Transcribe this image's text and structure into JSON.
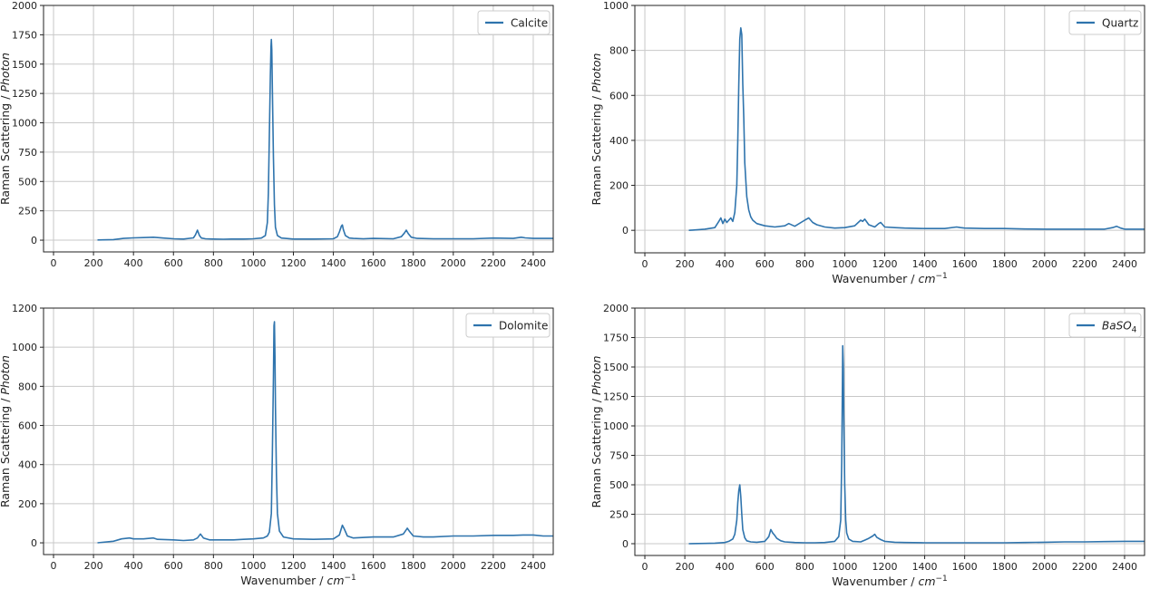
{
  "chart_data": [
    {
      "type": "line",
      "ylabel_main": "Raman Scattering / ",
      "ylabel_italic": "Photon",
      "xlabel": "",
      "xlim": [
        -50,
        2500
      ],
      "ylim": [
        -100,
        2000
      ],
      "xticks": [
        "0",
        "200",
        "400",
        "600",
        "800",
        "1000",
        "1200",
        "1400",
        "1600",
        "1800",
        "2000",
        "2200",
        "2400"
      ],
      "yticks": [
        "0",
        "250",
        "500",
        "750",
        "1000",
        "1250",
        "1500",
        "1750",
        "2000"
      ],
      "grid": true,
      "legend_position": "top-right",
      "series": [
        {
          "name": "Calcite",
          "color": "#2f74ad",
          "x": [
            220,
            300,
            350,
            400,
            450,
            500,
            550,
            600,
            650,
            700,
            710,
            720,
            730,
            740,
            760,
            800,
            850,
            900,
            950,
            1000,
            1040,
            1060,
            1070,
            1075,
            1080,
            1085,
            1088,
            1090,
            1092,
            1095,
            1100,
            1105,
            1110,
            1120,
            1140,
            1200,
            1300,
            1400,
            1420,
            1430,
            1440,
            1445,
            1450,
            1460,
            1480,
            1500,
            1550,
            1600,
            1700,
            1740,
            1755,
            1765,
            1775,
            1790,
            1820,
            1900,
            2000,
            2100,
            2200,
            2300,
            2340,
            2360,
            2400,
            2500
          ],
          "values": [
            2,
            5,
            15,
            20,
            22,
            25,
            18,
            12,
            10,
            20,
            45,
            85,
            40,
            18,
            12,
            10,
            8,
            10,
            10,
            12,
            18,
            40,
            150,
            400,
            900,
            1400,
            1650,
            1710,
            1620,
            1300,
            700,
            300,
            110,
            40,
            18,
            10,
            10,
            12,
            30,
            70,
            120,
            130,
            90,
            40,
            18,
            15,
            12,
            15,
            12,
            30,
            60,
            85,
            55,
            25,
            15,
            12,
            12,
            12,
            18,
            15,
            25,
            20,
            15,
            15
          ]
        }
      ]
    },
    {
      "type": "line",
      "ylabel_main": "Raman Scattering / ",
      "ylabel_italic": "Photon",
      "xlabel": "Wavenumber / cm",
      "xlabel_sup": "−1",
      "xlim": [
        -50,
        2500
      ],
      "ylim": [
        -100,
        1000
      ],
      "xticks": [
        "0",
        "200",
        "400",
        "600",
        "800",
        "1000",
        "1200",
        "1400",
        "1600",
        "1800",
        "2000",
        "2200",
        "2400"
      ],
      "yticks": [
        "0",
        "200",
        "400",
        "600",
        "800",
        "1000"
      ],
      "grid": true,
      "legend_position": "top-right",
      "series": [
        {
          "name": "Quartz",
          "color": "#2f74ad",
          "x": [
            220,
            300,
            350,
            370,
            380,
            390,
            400,
            410,
            420,
            430,
            440,
            450,
            460,
            465,
            470,
            475,
            480,
            485,
            490,
            495,
            500,
            510,
            520,
            530,
            540,
            560,
            600,
            650,
            700,
            720,
            750,
            800,
            820,
            840,
            860,
            900,
            950,
            1000,
            1050,
            1080,
            1090,
            1100,
            1120,
            1150,
            1170,
            1180,
            1200,
            1250,
            1300,
            1400,
            1500,
            1560,
            1580,
            1600,
            1700,
            1800,
            1900,
            2000,
            2100,
            2200,
            2300,
            2340,
            2360,
            2380,
            2400,
            2500
          ],
          "values": [
            0,
            5,
            12,
            40,
            55,
            30,
            50,
            35,
            45,
            55,
            40,
            80,
            200,
            400,
            650,
            850,
            900,
            870,
            650,
            500,
            300,
            150,
            90,
            60,
            45,
            30,
            20,
            15,
            20,
            30,
            18,
            45,
            55,
            35,
            25,
            15,
            10,
            12,
            20,
            45,
            40,
            50,
            25,
            15,
            30,
            35,
            15,
            12,
            10,
            8,
            8,
            15,
            12,
            10,
            8,
            8,
            6,
            5,
            5,
            5,
            5,
            12,
            18,
            10,
            5,
            5
          ]
        }
      ]
    },
    {
      "type": "line",
      "ylabel_main": "Raman Scattering / ",
      "ylabel_italic": "Photon",
      "xlabel": "Wavenumber / cm",
      "xlabel_sup": "−1",
      "xlim": [
        -50,
        2500
      ],
      "ylim": [
        -60,
        1200
      ],
      "xticks": [
        "0",
        "200",
        "400",
        "600",
        "800",
        "1000",
        "1200",
        "1400",
        "1600",
        "1800",
        "2000",
        "2200",
        "2400"
      ],
      "yticks": [
        "0",
        "200",
        "400",
        "600",
        "800",
        "1000",
        "1200"
      ],
      "grid": true,
      "legend_position": "top-right",
      "series": [
        {
          "name": "Dolomite",
          "color": "#2f74ad",
          "x": [
            220,
            300,
            340,
            380,
            400,
            450,
            500,
            520,
            600,
            650,
            700,
            720,
            735,
            750,
            780,
            850,
            900,
            950,
            1000,
            1050,
            1070,
            1080,
            1090,
            1095,
            1100,
            1103,
            1105,
            1108,
            1110,
            1115,
            1120,
            1130,
            1150,
            1200,
            1300,
            1400,
            1430,
            1445,
            1455,
            1470,
            1500,
            1600,
            1700,
            1750,
            1770,
            1780,
            1800,
            1850,
            1900,
            2000,
            2100,
            2200,
            2300,
            2350,
            2400,
            2450,
            2500
          ],
          "values": [
            0,
            8,
            20,
            25,
            20,
            20,
            25,
            18,
            15,
            12,
            15,
            25,
            45,
            25,
            15,
            15,
            15,
            18,
            20,
            25,
            35,
            55,
            150,
            450,
            850,
            1110,
            1130,
            950,
            700,
            350,
            150,
            60,
            30,
            20,
            18,
            20,
            40,
            90,
            70,
            35,
            25,
            30,
            30,
            45,
            75,
            60,
            35,
            30,
            30,
            35,
            35,
            38,
            38,
            40,
            40,
            35,
            35
          ]
        }
      ]
    },
    {
      "type": "line",
      "ylabel_main": "Raman Scattering / ",
      "ylabel_italic": "Photon",
      "xlabel": "Wavenumber / cm",
      "xlabel_sup": "−1",
      "xlim": [
        -50,
        2500
      ],
      "ylim": [
        -100,
        2000
      ],
      "xticks": [
        "0",
        "200",
        "400",
        "600",
        "800",
        "1000",
        "1200",
        "1400",
        "1600",
        "1800",
        "2000",
        "2200",
        "2400"
      ],
      "yticks": [
        "0",
        "250",
        "500",
        "750",
        "1000",
        "1250",
        "1500",
        "1750",
        "2000"
      ],
      "grid": true,
      "legend_position": "top-right",
      "series": [
        {
          "name": "BaSO",
          "name_sub": "4",
          "color": "#2f74ad",
          "x": [
            220,
            300,
            350,
            400,
            420,
            440,
            450,
            460,
            465,
            470,
            475,
            480,
            485,
            490,
            500,
            510,
            530,
            560,
            600,
            620,
            630,
            640,
            650,
            660,
            680,
            700,
            750,
            800,
            850,
            900,
            950,
            970,
            980,
            985,
            988,
            990,
            993,
            995,
            1000,
            1005,
            1010,
            1020,
            1040,
            1080,
            1100,
            1120,
            1140,
            1150,
            1160,
            1180,
            1200,
            1250,
            1300,
            1400,
            1500,
            1600,
            1700,
            1800,
            1900,
            2000,
            2100,
            2200,
            2300,
            2400,
            2500
          ],
          "values": [
            0,
            2,
            5,
            10,
            20,
            40,
            80,
            200,
            350,
            450,
            500,
            400,
            250,
            120,
            50,
            25,
            15,
            12,
            20,
            60,
            120,
            90,
            70,
            45,
            25,
            15,
            10,
            8,
            8,
            10,
            20,
            60,
            200,
            700,
            1300,
            1680,
            1500,
            1100,
            500,
            200,
            90,
            40,
            20,
            15,
            30,
            45,
            65,
            80,
            55,
            35,
            20,
            12,
            10,
            8,
            8,
            8,
            8,
            8,
            10,
            12,
            15,
            15,
            18,
            20,
            20
          ]
        }
      ]
    }
  ]
}
